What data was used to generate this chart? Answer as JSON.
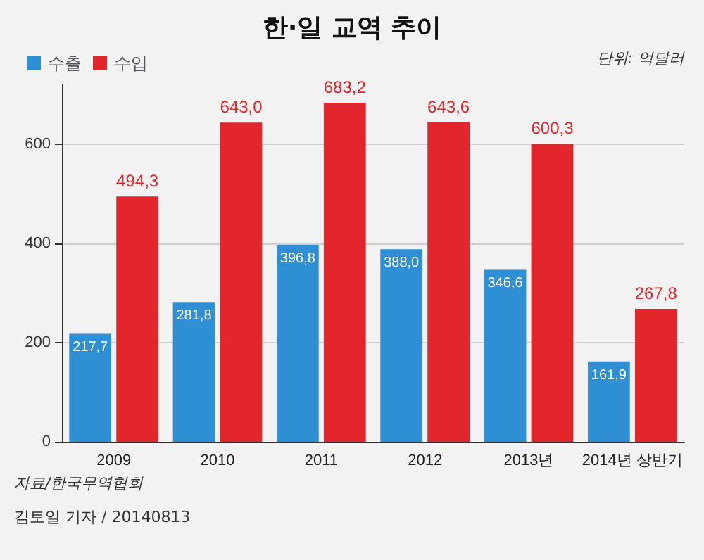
{
  "chart_data": {
    "type": "bar",
    "title": "한·일 교역 추이",
    "categories": [
      "2009",
      "2010",
      "2011",
      "2012",
      "2013년",
      "2014년 상반기"
    ],
    "series": [
      {
        "name": "수출",
        "color": "#2f8fd5",
        "values": [
          217.7,
          281.8,
          396.8,
          388.0,
          346.6,
          161.9
        ],
        "value_labels": [
          "217,7",
          "281,8",
          "396,8",
          "388,0",
          "346,6",
          "161,9"
        ]
      },
      {
        "name": "수입",
        "color": "#e3262b",
        "values": [
          494.3,
          643.0,
          683.2,
          643.6,
          600.3,
          267.8
        ],
        "value_labels": [
          "494,3",
          "643,0",
          "683,2",
          "643,6",
          "600,3",
          "267,8"
        ]
      }
    ],
    "ylim": [
      0,
      720
    ],
    "yticks": [
      0,
      200,
      400,
      600
    ],
    "grid": "y",
    "legend": "top left",
    "annotations": [
      "단위: 억달러",
      "자료/한국무역협회",
      "김토일 기자 / 20140813"
    ]
  }
}
